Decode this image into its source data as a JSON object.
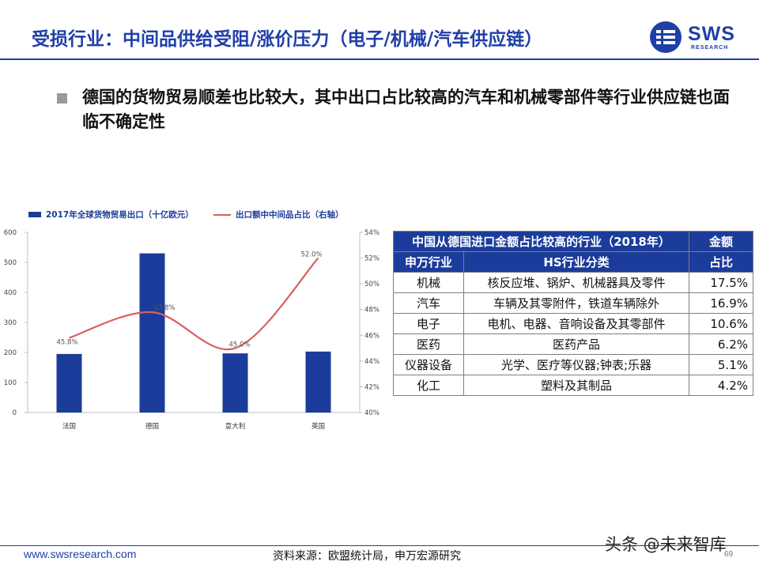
{
  "header": {
    "title": "受损行业：中间品供给受阻/涨价压力（电子/机械/汽车供应链）",
    "logo_text": "SWS",
    "logo_sub": "RESEARCH",
    "accent_color": "#1f3fa8"
  },
  "bullet": {
    "text": "德国的货物贸易顺差也比较大，其中出口占比较高的汽车和机械零部件等行业供应链也面临不确定性"
  },
  "chart_data": {
    "type": "bar",
    "categories": [
      "法国",
      "德国",
      "意大利",
      "英国"
    ],
    "series": [
      {
        "name": "2017年全球货物贸易出口（十亿欧元）",
        "type": "bar",
        "axis": "left",
        "color": "#1b3c9a",
        "values": [
          195,
          530,
          197,
          203
        ]
      },
      {
        "name": "出口额中中间品占比（右轴）",
        "type": "line",
        "axis": "right",
        "color": "#d9605f",
        "values": [
          45.8,
          47.8,
          45.0,
          52.0
        ],
        "labels": [
          "45.8%",
          "47.8%",
          "45.0%",
          "52.0%"
        ]
      }
    ],
    "ylim": [
      0,
      600
    ],
    "y_ticks": [
      "0",
      "100",
      "200",
      "300",
      "400",
      "500",
      "600"
    ],
    "y2lim": [
      40,
      54
    ],
    "y2_ticks": [
      "40%",
      "42%",
      "44%",
      "46%",
      "48%",
      "50%",
      "52%",
      "54%"
    ],
    "legend": "top-left",
    "grid": false
  },
  "table": {
    "title": "中国从德国进口金额占比较高的行业（2018年）",
    "col_amount": "金额",
    "col_share": "占比",
    "col_industry": "申万行业",
    "col_hs": "HS行业分类",
    "rows": [
      {
        "industry": "机械",
        "hs": "核反应堆、锅炉、机械器具及零件",
        "share": "17.5%"
      },
      {
        "industry": "汽车",
        "hs": "车辆及其零附件，铁道车辆除外",
        "share": "16.9%"
      },
      {
        "industry": "电子",
        "hs": "电机、电器、音响设备及其零部件",
        "share": "10.6%"
      },
      {
        "industry": "医药",
        "hs": "医药产品",
        "share": "6.2%"
      },
      {
        "industry": "仪器设备",
        "hs": "光学、医疗等仪器;钟表;乐器",
        "share": "5.1%"
      },
      {
        "industry": "化工",
        "hs": "塑料及其制品",
        "share": "4.2%"
      }
    ]
  },
  "footer": {
    "url": "www.swsresearch.com",
    "source": "资料来源：欧盟统计局，申万宏源研究",
    "page": "69",
    "watermark": "头条 @未来智库"
  }
}
